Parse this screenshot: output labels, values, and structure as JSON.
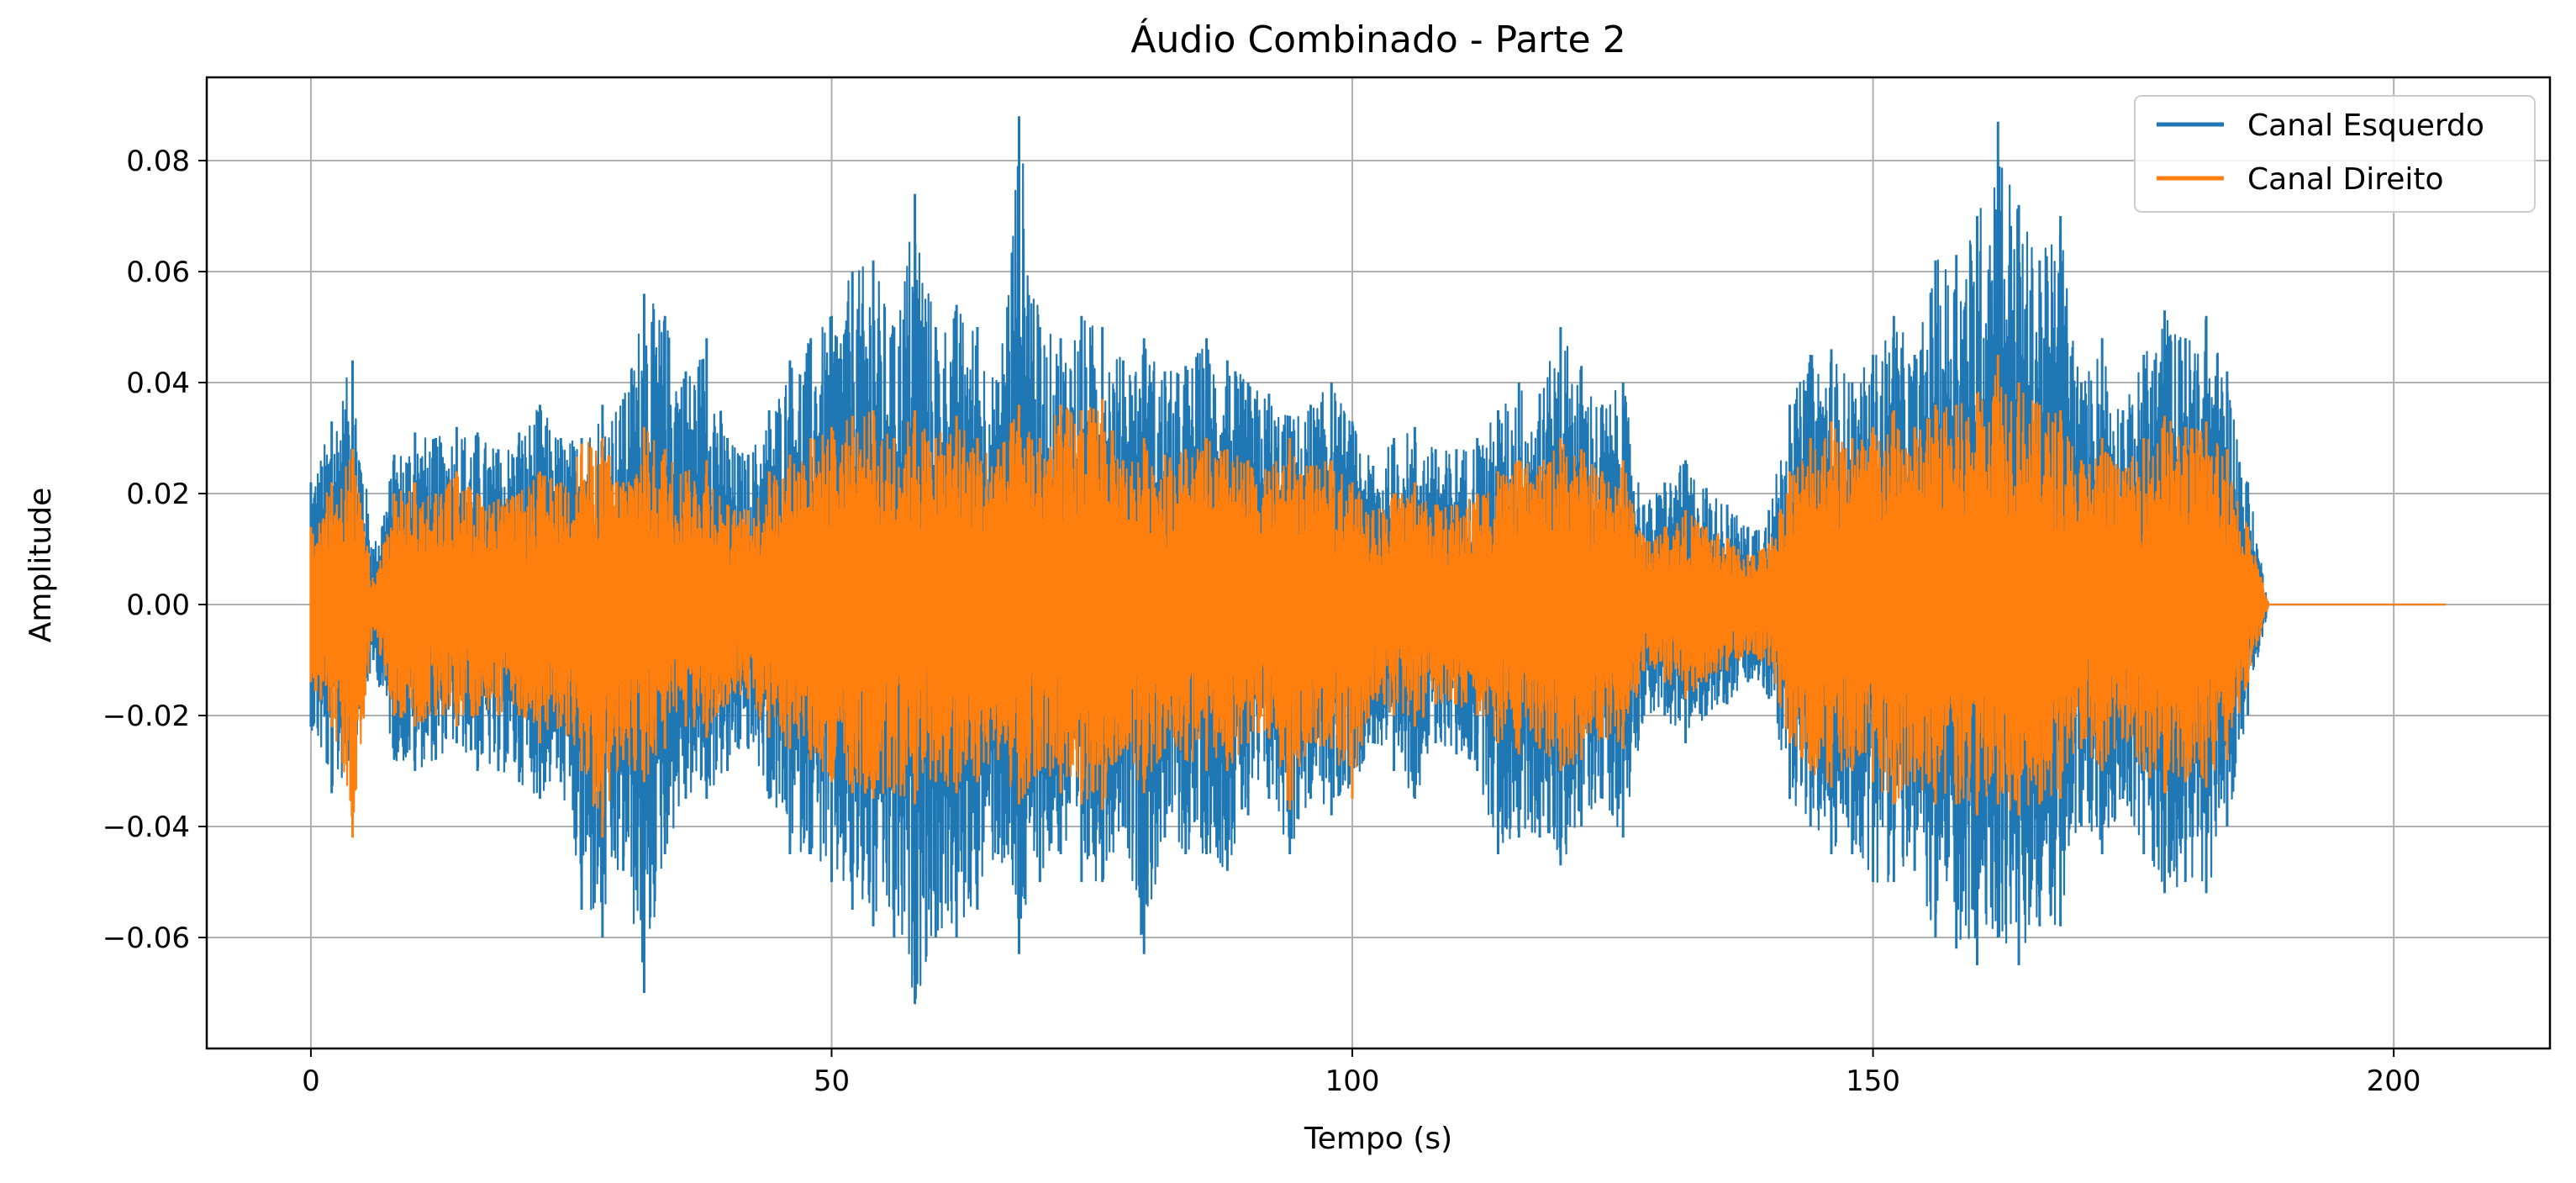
{
  "chart_data": {
    "type": "line",
    "title": "Áudio Combinado - Parte 2",
    "xlabel": "Tempo (s)",
    "ylabel": "Amplitude",
    "xlim": [
      -10,
      215
    ],
    "ylim": [
      -0.08,
      0.095
    ],
    "xticks": [
      0,
      50,
      100,
      150,
      200
    ],
    "xtick_labels": [
      "0",
      "50",
      "100",
      "150",
      "200"
    ],
    "yticks": [
      -0.06,
      -0.04,
      -0.02,
      0.0,
      0.02,
      0.04,
      0.06,
      0.08
    ],
    "ytick_labels": [
      "−0.06",
      "−0.04",
      "−0.02",
      "0.00",
      "0.02",
      "0.04",
      "0.06",
      "0.08"
    ],
    "grid": true,
    "legend_position": "top-right",
    "x_range": [
      0,
      205
    ],
    "x_step": 2,
    "series": [
      {
        "name": "Canal Esquerdo",
        "color": "#1f77b4",
        "upper": [
          0.022,
          0.033,
          0.044,
          0.01,
          0.027,
          0.031,
          0.03,
          0.032,
          0.031,
          0.028,
          0.031,
          0.036,
          0.03,
          0.03,
          0.036,
          0.037,
          0.056,
          0.052,
          0.042,
          0.048,
          0.03,
          0.027,
          0.035,
          0.044,
          0.048,
          0.052,
          0.06,
          0.062,
          0.05,
          0.074,
          0.05,
          0.054,
          0.05,
          0.04,
          0.088,
          0.05,
          0.048,
          0.052,
          0.05,
          0.044,
          0.048,
          0.042,
          0.043,
          0.048,
          0.044,
          0.04,
          0.038,
          0.034,
          0.036,
          0.04,
          0.033,
          0.025,
          0.03,
          0.032,
          0.028,
          0.028,
          0.03,
          0.035,
          0.04,
          0.038,
          0.05,
          0.043,
          0.036,
          0.04,
          0.018,
          0.022,
          0.026,
          0.021,
          0.018,
          0.014,
          0.017,
          0.036,
          0.045,
          0.046,
          0.04,
          0.045,
          0.052,
          0.045,
          0.062,
          0.063,
          0.07,
          0.087,
          0.072,
          0.062,
          0.07,
          0.04,
          0.048,
          0.035,
          0.045,
          0.053,
          0.048,
          0.052,
          0.042,
          0.022,
          0.0,
          0.0,
          0.0,
          0.0,
          0.0,
          0.0,
          0.0,
          0.0,
          0.0
        ],
        "lower": [
          -0.022,
          -0.034,
          -0.03,
          -0.01,
          -0.028,
          -0.03,
          -0.028,
          -0.025,
          -0.03,
          -0.03,
          -0.032,
          -0.035,
          -0.032,
          -0.055,
          -0.06,
          -0.048,
          -0.07,
          -0.045,
          -0.035,
          -0.035,
          -0.03,
          -0.026,
          -0.035,
          -0.045,
          -0.045,
          -0.05,
          -0.055,
          -0.058,
          -0.06,
          -0.072,
          -0.06,
          -0.06,
          -0.055,
          -0.045,
          -0.063,
          -0.05,
          -0.045,
          -0.05,
          -0.05,
          -0.04,
          -0.063,
          -0.042,
          -0.045,
          -0.045,
          -0.048,
          -0.038,
          -0.035,
          -0.045,
          -0.035,
          -0.038,
          -0.033,
          -0.025,
          -0.03,
          -0.035,
          -0.025,
          -0.027,
          -0.03,
          -0.045,
          -0.042,
          -0.042,
          -0.047,
          -0.04,
          -0.035,
          -0.042,
          -0.02,
          -0.02,
          -0.025,
          -0.02,
          -0.018,
          -0.014,
          -0.017,
          -0.035,
          -0.04,
          -0.045,
          -0.045,
          -0.05,
          -0.05,
          -0.048,
          -0.06,
          -0.062,
          -0.065,
          -0.06,
          -0.065,
          -0.058,
          -0.058,
          -0.04,
          -0.045,
          -0.035,
          -0.045,
          -0.052,
          -0.05,
          -0.052,
          -0.04,
          -0.02,
          0.0,
          0.0,
          0.0,
          0.0,
          0.0,
          0.0,
          0.0,
          0.0,
          0.0
        ]
      },
      {
        "name": "Canal Direito",
        "color": "#ff7f0e",
        "upper": [
          0.014,
          0.022,
          0.028,
          0.004,
          0.02,
          0.022,
          0.02,
          0.024,
          0.02,
          0.019,
          0.02,
          0.024,
          0.022,
          0.029,
          0.03,
          0.022,
          0.032,
          0.028,
          0.024,
          0.026,
          0.018,
          0.017,
          0.024,
          0.027,
          0.03,
          0.032,
          0.034,
          0.035,
          0.03,
          0.035,
          0.03,
          0.034,
          0.03,
          0.028,
          0.036,
          0.03,
          0.036,
          0.035,
          0.037,
          0.026,
          0.03,
          0.027,
          0.028,
          0.03,
          0.028,
          0.026,
          0.024,
          0.03,
          0.025,
          0.026,
          0.022,
          0.017,
          0.02,
          0.022,
          0.018,
          0.018,
          0.02,
          0.024,
          0.026,
          0.025,
          0.03,
          0.028,
          0.024,
          0.026,
          0.012,
          0.014,
          0.017,
          0.014,
          0.012,
          0.009,
          0.011,
          0.024,
          0.03,
          0.033,
          0.03,
          0.032,
          0.035,
          0.032,
          0.036,
          0.036,
          0.038,
          0.045,
          0.04,
          0.036,
          0.035,
          0.026,
          0.03,
          0.024,
          0.03,
          0.034,
          0.032,
          0.033,
          0.028,
          0.014,
          0.0,
          0.0,
          0.0,
          0.0,
          0.0,
          0.0,
          0.0,
          0.0,
          0.0
        ],
        "lower": [
          -0.014,
          -0.022,
          -0.042,
          -0.004,
          -0.02,
          -0.022,
          -0.02,
          -0.022,
          -0.02,
          -0.02,
          -0.02,
          -0.025,
          -0.022,
          -0.03,
          -0.042,
          -0.028,
          -0.032,
          -0.026,
          -0.022,
          -0.024,
          -0.018,
          -0.017,
          -0.024,
          -0.026,
          -0.028,
          -0.032,
          -0.034,
          -0.035,
          -0.034,
          -0.036,
          -0.032,
          -0.034,
          -0.032,
          -0.028,
          -0.036,
          -0.03,
          -0.034,
          -0.036,
          -0.037,
          -0.026,
          -0.034,
          -0.026,
          -0.028,
          -0.03,
          -0.03,
          -0.025,
          -0.024,
          -0.037,
          -0.025,
          -0.026,
          -0.035,
          -0.017,
          -0.02,
          -0.022,
          -0.018,
          -0.018,
          -0.02,
          -0.025,
          -0.027,
          -0.026,
          -0.03,
          -0.028,
          -0.024,
          -0.026,
          -0.012,
          -0.014,
          -0.017,
          -0.014,
          -0.012,
          -0.009,
          -0.011,
          -0.025,
          -0.03,
          -0.033,
          -0.03,
          -0.032,
          -0.036,
          -0.032,
          -0.036,
          -0.036,
          -0.038,
          -0.036,
          -0.038,
          -0.036,
          -0.035,
          -0.026,
          -0.03,
          -0.024,
          -0.03,
          -0.034,
          -0.032,
          -0.033,
          -0.028,
          -0.014,
          0.0,
          0.0,
          0.0,
          0.0,
          0.0,
          0.0,
          0.0,
          0.0,
          0.0
        ]
      }
    ]
  }
}
